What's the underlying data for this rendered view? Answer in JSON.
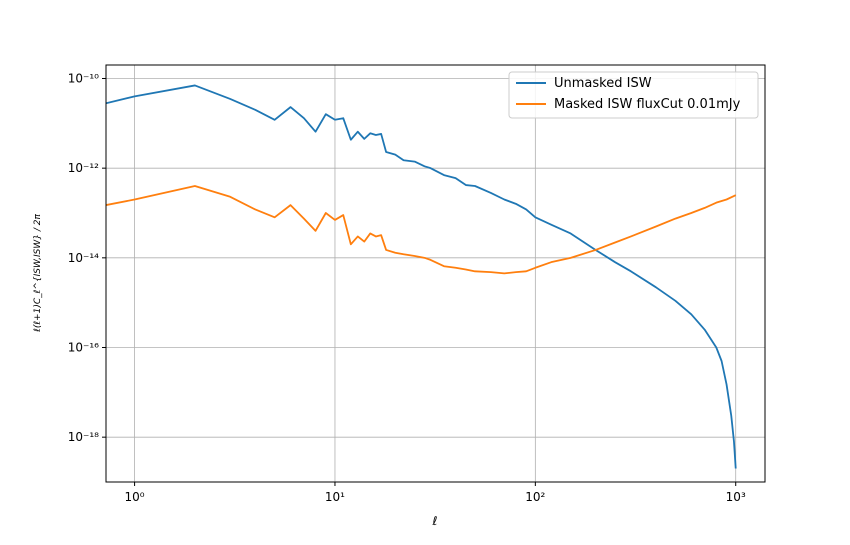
{
  "chart_data": {
    "type": "line",
    "xscale": "log",
    "yscale": "log",
    "xlim": [
      0.72,
      1400
    ],
    "ylim": [
      1e-19,
      2e-10
    ],
    "grid": true,
    "legend_position": "top-right",
    "xlabel": "ℓ",
    "ylabel": "ℓ(ℓ+1)C_ℓ^{ISW,ISW} / 2π",
    "x_ticks": [
      {
        "value": 1,
        "label": "10⁰"
      },
      {
        "value": 10,
        "label": "10¹"
      },
      {
        "value": 100,
        "label": "10²"
      },
      {
        "value": 1000,
        "label": "10³"
      }
    ],
    "y_ticks": [
      {
        "value": 1e-10,
        "label": "10⁻¹⁰"
      },
      {
        "value": 1e-12,
        "label": "10⁻¹²"
      },
      {
        "value": 1e-14,
        "label": "10⁻¹⁴"
      },
      {
        "value": 1e-16,
        "label": "10⁻¹⁶"
      },
      {
        "value": 1e-18,
        "label": "10⁻¹⁸"
      }
    ],
    "series": [
      {
        "name": "Unmasked ISW",
        "color": "#1f77b4",
        "x": [
          0.72,
          1,
          2,
          3,
          4,
          5,
          6,
          7,
          8,
          9,
          10,
          11,
          12,
          13,
          14,
          15,
          16,
          17,
          18,
          20,
          22,
          25,
          28,
          30,
          35,
          40,
          45,
          50,
          60,
          70,
          80,
          90,
          100,
          120,
          150,
          200,
          250,
          300,
          400,
          500,
          600,
          700,
          800,
          850,
          900,
          950,
          980,
          1000
        ],
        "y": [
          2.8e-11,
          4e-11,
          7e-11,
          3.5e-11,
          2e-11,
          1.2e-11,
          2.3e-11,
          1.3e-11,
          6.5e-12,
          1.6e-11,
          1.2e-11,
          1.3e-11,
          4.3e-12,
          6.5e-12,
          4.5e-12,
          6e-12,
          5.5e-12,
          5.8e-12,
          2.3e-12,
          2e-12,
          1.5e-12,
          1.4e-12,
          1.1e-12,
          1e-12,
          7e-13,
          6e-13,
          4.2e-13,
          4e-13,
          2.8e-13,
          2e-13,
          1.6e-13,
          1.2e-13,
          8e-14,
          5.5e-14,
          3.5e-14,
          1.5e-14,
          8e-15,
          5e-15,
          2.2e-15,
          1.1e-15,
          5.5e-16,
          2.5e-16,
          1e-16,
          5e-17,
          1.5e-17,
          3e-18,
          8e-19,
          2e-19
        ]
      },
      {
        "name": "Masked ISW fluxCut 0.01mJy",
        "color": "#ff7f0e",
        "x": [
          0.72,
          1,
          2,
          3,
          4,
          5,
          6,
          7,
          8,
          9,
          10,
          11,
          12,
          13,
          14,
          15,
          16,
          17,
          18,
          20,
          22,
          25,
          28,
          30,
          35,
          40,
          45,
          50,
          60,
          70,
          80,
          90,
          100,
          120,
          150,
          200,
          250,
          300,
          400,
          500,
          600,
          700,
          800,
          900,
          1000
        ],
        "y": [
          1.5e-13,
          2e-13,
          4e-13,
          2.3e-13,
          1.2e-13,
          8e-14,
          1.5e-13,
          7.5e-14,
          4e-14,
          1e-13,
          7e-14,
          9e-14,
          2e-14,
          3e-14,
          2.3e-14,
          3.5e-14,
          3e-14,
          3.2e-14,
          1.5e-14,
          1.3e-14,
          1.2e-14,
          1.1e-14,
          1e-14,
          9e-15,
          6.5e-15,
          6e-15,
          5.5e-15,
          5e-15,
          4.8e-15,
          4.5e-15,
          4.8e-15,
          5e-15,
          6e-15,
          8e-15,
          1e-14,
          1.5e-14,
          2.2e-14,
          3e-14,
          5e-14,
          7.5e-14,
          1e-13,
          1.3e-13,
          1.7e-13,
          2e-13,
          2.5e-13
        ]
      }
    ]
  }
}
